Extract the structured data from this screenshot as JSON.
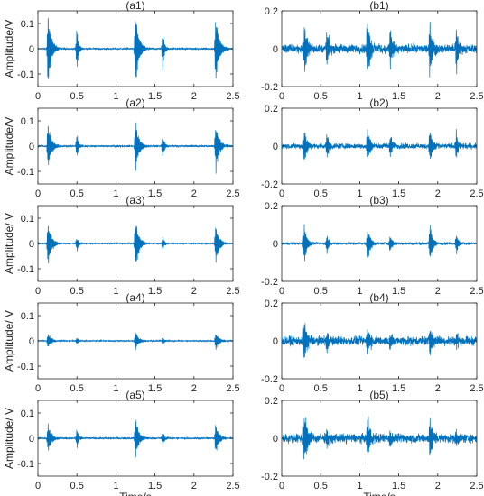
{
  "chart_data": {
    "type": "line",
    "xlabel": "Time/s",
    "x_range": [
      0,
      2.5
    ],
    "x_ticks": [
      "0",
      "0.5",
      "1",
      "1.5",
      "2",
      "2.5"
    ],
    "line_color": "#0072BD",
    "panels": [
      {
        "id": "a1",
        "title": "(a1)",
        "ylabel": "Amplitude/V",
        "ylim": [
          -0.15,
          0.15
        ],
        "yticks": [
          "0.1",
          "0",
          "-0.1"
        ],
        "ytick_values": [
          0.1,
          0,
          -0.1
        ],
        "bursts": [
          {
            "t": 0.13,
            "amp": 0.14,
            "dur": 0.12
          },
          {
            "t": 0.5,
            "amp": 0.08,
            "dur": 0.06
          },
          {
            "t": 1.25,
            "amp": 0.14,
            "dur": 0.12
          },
          {
            "t": 1.6,
            "amp": 0.08,
            "dur": 0.06
          },
          {
            "t": 2.28,
            "amp": 0.14,
            "dur": 0.12
          }
        ],
        "noise": 0.003
      },
      {
        "id": "b1",
        "title": "(b1)",
        "ylabel": "",
        "ylim": [
          -0.2,
          0.2
        ],
        "yticks": [
          "0.2",
          "0",
          "-0.2"
        ],
        "ytick_values": [
          0.2,
          0,
          -0.2
        ],
        "bursts": [
          {
            "t": 0.29,
            "amp": 0.13,
            "dur": 0.1
          },
          {
            "t": 0.58,
            "amp": 0.1,
            "dur": 0.08
          },
          {
            "t": 1.1,
            "amp": 0.18,
            "dur": 0.1
          },
          {
            "t": 1.39,
            "amp": 0.12,
            "dur": 0.08
          },
          {
            "t": 1.9,
            "amp": 0.16,
            "dur": 0.1
          },
          {
            "t": 2.24,
            "amp": 0.13,
            "dur": 0.07
          }
        ],
        "noise": 0.02
      },
      {
        "id": "a2",
        "title": "(a2)",
        "ylabel": "Amplitude/V",
        "ylim": [
          -0.15,
          0.15
        ],
        "yticks": [
          "0.1",
          "0",
          "-0.1"
        ],
        "ytick_values": [
          0.1,
          0,
          -0.1
        ],
        "bursts": [
          {
            "t": 0.13,
            "amp": 0.09,
            "dur": 0.12
          },
          {
            "t": 0.5,
            "amp": 0.05,
            "dur": 0.06
          },
          {
            "t": 1.25,
            "amp": 0.1,
            "dur": 0.12
          },
          {
            "t": 1.6,
            "amp": 0.05,
            "dur": 0.06
          },
          {
            "t": 2.28,
            "amp": 0.1,
            "dur": 0.12
          }
        ],
        "noise": 0.003
      },
      {
        "id": "b2",
        "title": "(b2)",
        "ylabel": "",
        "ylim": [
          -0.2,
          0.2
        ],
        "yticks": [
          "0.2",
          "0",
          "-0.2"
        ],
        "ytick_values": [
          0.2,
          0,
          -0.2
        ],
        "bursts": [
          {
            "t": 0.29,
            "amp": 0.09,
            "dur": 0.1
          },
          {
            "t": 0.58,
            "amp": 0.07,
            "dur": 0.08
          },
          {
            "t": 1.1,
            "amp": 0.1,
            "dur": 0.1
          },
          {
            "t": 1.39,
            "amp": 0.07,
            "dur": 0.08
          },
          {
            "t": 1.9,
            "amp": 0.09,
            "dur": 0.1
          },
          {
            "t": 2.24,
            "amp": 0.08,
            "dur": 0.07
          }
        ],
        "noise": 0.012
      },
      {
        "id": "a3",
        "title": "(a3)",
        "ylabel": "Amplitude/ V",
        "ylim": [
          -0.15,
          0.15
        ],
        "yticks": [
          "0.1",
          "0",
          "-0.1"
        ],
        "ytick_values": [
          0.1,
          0,
          -0.1
        ],
        "bursts": [
          {
            "t": 0.13,
            "amp": 0.09,
            "dur": 0.12
          },
          {
            "t": 0.5,
            "amp": 0.03,
            "dur": 0.06
          },
          {
            "t": 1.25,
            "amp": 0.1,
            "dur": 0.12
          },
          {
            "t": 1.6,
            "amp": 0.03,
            "dur": 0.06
          },
          {
            "t": 2.28,
            "amp": 0.08,
            "dur": 0.12
          }
        ],
        "noise": 0.002
      },
      {
        "id": "b3",
        "title": "(b3)",
        "ylabel": "",
        "ylim": [
          -0.2,
          0.2
        ],
        "yticks": [
          "0.2",
          "0",
          "-0.2"
        ],
        "ytick_values": [
          0.2,
          0,
          -0.2
        ],
        "bursts": [
          {
            "t": 0.29,
            "amp": 0.1,
            "dur": 0.1
          },
          {
            "t": 0.58,
            "amp": 0.05,
            "dur": 0.08
          },
          {
            "t": 1.1,
            "amp": 0.1,
            "dur": 0.1
          },
          {
            "t": 1.39,
            "amp": 0.05,
            "dur": 0.08
          },
          {
            "t": 1.9,
            "amp": 0.1,
            "dur": 0.1
          },
          {
            "t": 2.24,
            "amp": 0.06,
            "dur": 0.07
          }
        ],
        "noise": 0.006
      },
      {
        "id": "a4",
        "title": "(a4)",
        "ylabel": "Amplitude/ V",
        "ylim": [
          -0.15,
          0.15
        ],
        "yticks": [
          "0.1",
          "0",
          "-0.1"
        ],
        "ytick_values": [
          0.1,
          0,
          -0.1
        ],
        "bursts": [
          {
            "t": 0.13,
            "amp": 0.03,
            "dur": 0.12
          },
          {
            "t": 0.5,
            "amp": 0.015,
            "dur": 0.06
          },
          {
            "t": 1.25,
            "amp": 0.035,
            "dur": 0.12
          },
          {
            "t": 1.6,
            "amp": 0.015,
            "dur": 0.06
          },
          {
            "t": 2.28,
            "amp": 0.035,
            "dur": 0.12
          }
        ],
        "noise": 0.002
      },
      {
        "id": "b4",
        "title": "(b4)",
        "ylabel": "",
        "ylim": [
          -0.2,
          0.2
        ],
        "yticks": [
          "0.2",
          "0",
          "-0.2"
        ],
        "ytick_values": [
          0.2,
          0,
          -0.2
        ],
        "bursts": [
          {
            "t": 0.29,
            "amp": 0.1,
            "dur": 0.12
          },
          {
            "t": 0.58,
            "amp": 0.06,
            "dur": 0.08
          },
          {
            "t": 1.1,
            "amp": 0.09,
            "dur": 0.1
          },
          {
            "t": 1.39,
            "amp": 0.05,
            "dur": 0.08
          },
          {
            "t": 1.9,
            "amp": 0.08,
            "dur": 0.1
          },
          {
            "t": 2.24,
            "amp": 0.05,
            "dur": 0.07
          }
        ],
        "noise": 0.02
      },
      {
        "id": "a5",
        "title": "(a5)",
        "ylabel": "Amplitude/ V",
        "ylim": [
          -0.15,
          0.15
        ],
        "yticks": [
          "0.1",
          "0",
          "-0.1"
        ],
        "ytick_values": [
          0.1,
          0,
          -0.1
        ],
        "bursts": [
          {
            "t": 0.13,
            "amp": 0.06,
            "dur": 0.12
          },
          {
            "t": 0.5,
            "amp": 0.04,
            "dur": 0.06
          },
          {
            "t": 1.25,
            "amp": 0.08,
            "dur": 0.12
          },
          {
            "t": 1.6,
            "amp": 0.03,
            "dur": 0.06
          },
          {
            "t": 2.28,
            "amp": 0.06,
            "dur": 0.12
          }
        ],
        "noise": 0.003
      },
      {
        "id": "b5",
        "title": "(b5)",
        "ylabel": "",
        "ylim": [
          -0.2,
          0.2
        ],
        "yticks": [
          "0.2",
          "0",
          "-0.2"
        ],
        "ytick_values": [
          0.2,
          0,
          -0.2
        ],
        "bursts": [
          {
            "t": 0.29,
            "amp": 0.14,
            "dur": 0.12
          },
          {
            "t": 0.58,
            "amp": 0.06,
            "dur": 0.08
          },
          {
            "t": 1.1,
            "amp": 0.15,
            "dur": 0.1
          },
          {
            "t": 1.39,
            "amp": 0.05,
            "dur": 0.08
          },
          {
            "t": 1.9,
            "amp": 0.13,
            "dur": 0.1
          },
          {
            "t": 2.24,
            "amp": 0.05,
            "dur": 0.07
          }
        ],
        "noise": 0.02
      }
    ]
  }
}
